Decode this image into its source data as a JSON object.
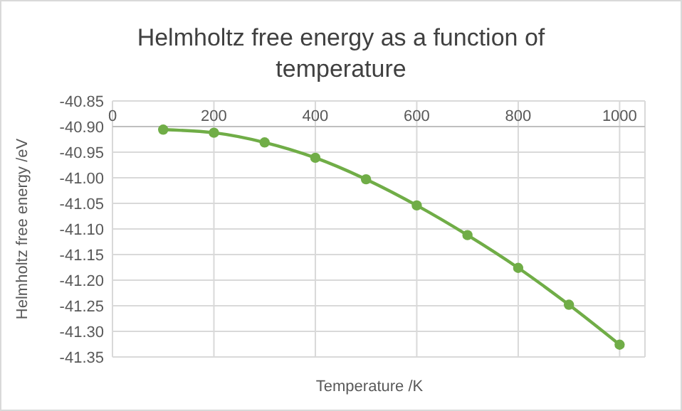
{
  "chart_data": {
    "type": "line",
    "title": "Helmholtz free energy as a function of temperature",
    "xlabel": "Temperature /K",
    "ylabel": "Helmholtz free energy /eV",
    "x": [
      100,
      200,
      300,
      400,
      500,
      600,
      700,
      800,
      900,
      1000
    ],
    "series": [
      {
        "color": "#70ad47",
        "values": [
          -40.906,
          -40.912,
          -40.931,
          -40.961,
          -41.003,
          -41.054,
          -41.112,
          -41.176,
          -41.248,
          -41.326
        ]
      }
    ],
    "xlim": [
      0,
      1050
    ],
    "xticks": [
      0,
      200,
      400,
      600,
      800,
      1000
    ],
    "ylim": [
      -41.35,
      -40.85
    ],
    "yticks": [
      {
        "value": -41.35,
        "label": "-41.35"
      },
      {
        "value": -41.3,
        "label": "-41.30"
      },
      {
        "value": -41.25,
        "label": "-41.25"
      },
      {
        "value": -41.2,
        "label": "-41.20"
      },
      {
        "value": -41.15,
        "label": "-41.15"
      },
      {
        "value": -41.1,
        "label": "-41.10"
      },
      {
        "value": -41.05,
        "label": "-41.05"
      },
      {
        "value": -41.0,
        "label": "-41.00"
      },
      {
        "value": -40.95,
        "label": "-40.95"
      },
      {
        "value": -40.9,
        "label": "-40.90"
      },
      {
        "value": -40.85,
        "label": "-40.85"
      }
    ],
    "grid": true,
    "marker": "circle",
    "line_style": "solid"
  }
}
